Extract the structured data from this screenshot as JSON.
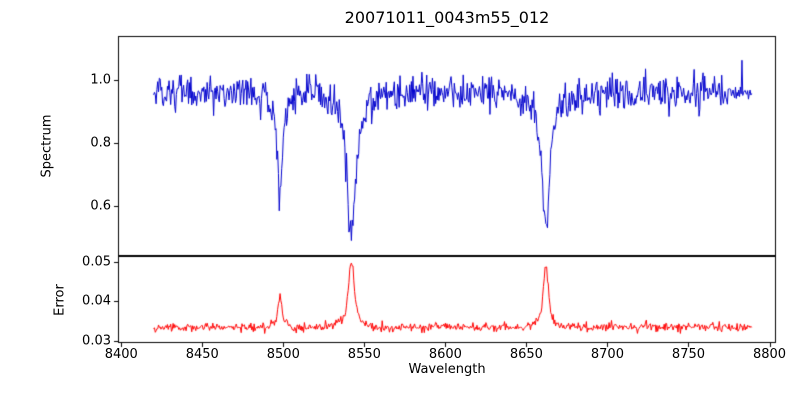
{
  "figure": {
    "background": "#ffffff"
  },
  "chart_data": {
    "type": "line",
    "title": "20071011_0043m55_012",
    "xlabel": "Wavelength",
    "xlim": [
      8398,
      8804
    ],
    "x_range": [
      8420,
      8789
    ],
    "x_step": 0.5,
    "xticks": [
      8400,
      8450,
      8500,
      8550,
      8600,
      8650,
      8700,
      8750,
      8800
    ],
    "xtick_labels": [
      "8400",
      "8450",
      "8500",
      "8550",
      "8600",
      "8650",
      "8700",
      "8750",
      "8800"
    ],
    "seed": 20071011,
    "panels": [
      {
        "name": "spectrum",
        "ylabel": "Spectrum",
        "line_color": "#0000cd",
        "ylim": [
          0.44,
          1.14
        ],
        "yticks": [
          0.6,
          0.8,
          1.0
        ],
        "ytick_labels": [
          "0.6",
          "0.8",
          "1.0"
        ],
        "baseline": 0.96,
        "noise_sigma": 0.027,
        "features": [
          {
            "center": 8498,
            "amplitude": -0.33,
            "width": 1.4
          },
          {
            "center": 8542,
            "amplitude": -0.455,
            "width": 2.5
          },
          {
            "center": 8662,
            "amplitude": -0.425,
            "width": 2.2
          }
        ]
      },
      {
        "name": "error",
        "ylabel": "Error",
        "line_color": "#ff0000",
        "ylim": [
          0.0295,
          0.0515
        ],
        "yticks": [
          0.03,
          0.04,
          0.05
        ],
        "ytick_labels": [
          "0.03",
          "0.04",
          "0.05"
        ],
        "baseline": 0.0335,
        "noise_sigma": 0.00055,
        "features": [
          {
            "center": 8498,
            "amplitude": 0.0078,
            "width": 1.0
          },
          {
            "center": 8542,
            "amplitude": 0.0163,
            "width": 1.6
          },
          {
            "center": 8662,
            "amplitude": 0.0155,
            "width": 1.4
          }
        ]
      }
    ]
  }
}
